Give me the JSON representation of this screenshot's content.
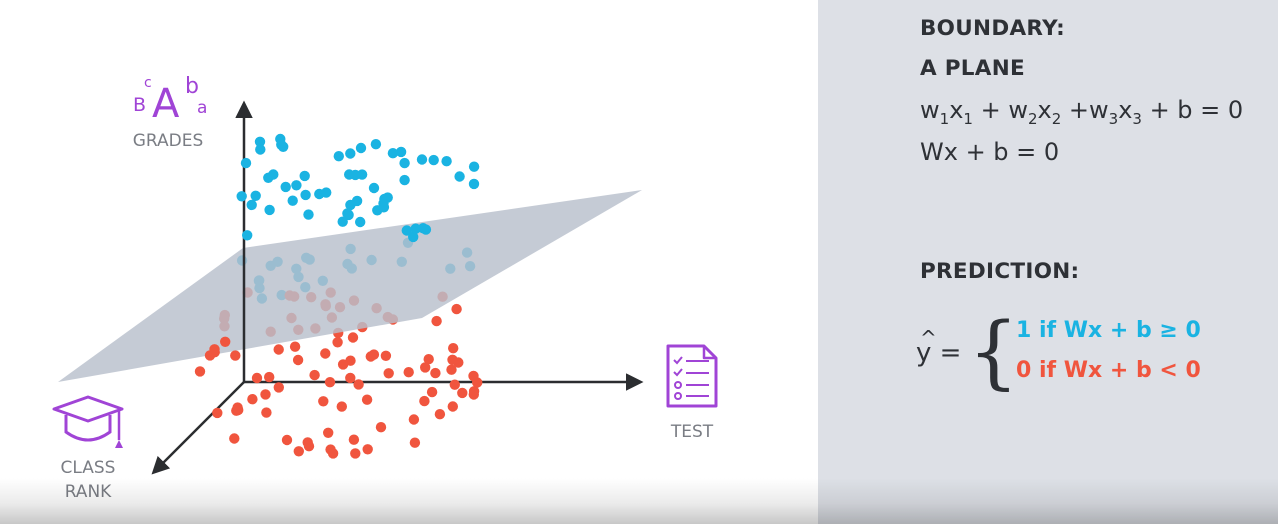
{
  "axes": {
    "grades_label": "GRADES",
    "test_label": "TEST",
    "class_rank_line1": "CLASS",
    "class_rank_line2": "RANK"
  },
  "grades_icon": {
    "big": "A",
    "sup_left": "c",
    "left": "B",
    "right_top": "b",
    "right_bottom": "a"
  },
  "icons": [
    "grades-letters-icon",
    "test-document-icon",
    "graduation-cap-icon"
  ],
  "colors": {
    "positive": "#1ab3e2",
    "negative": "#f0553e",
    "plane": "#b8c0cc",
    "icon_purple": "#a044d6",
    "axis": "#2b2d30",
    "panel": "#dde0e6"
  },
  "boundary": {
    "heading_line1": "BOUNDARY:",
    "heading_line2": "A PLANE",
    "equation_terms": [
      {
        "w": "w",
        "wi": "1",
        "x": "x",
        "xi": "1",
        "op": " + "
      },
      {
        "w": "w",
        "wi": "2",
        "x": "x",
        "xi": "2",
        "op": " +"
      },
      {
        "w": "w",
        "wi": "3",
        "x": "x",
        "xi": "3",
        "op": " + b = 0"
      }
    ],
    "vector_form": "Wx + b = 0"
  },
  "prediction": {
    "heading": "PREDICTION:",
    "yhat": "y",
    "hat": "^",
    "equals": " =",
    "brace": "{",
    "case_positive": "1 if Wx + b ≥ 0",
    "case_negative": "0 if Wx + b < 0"
  }
}
